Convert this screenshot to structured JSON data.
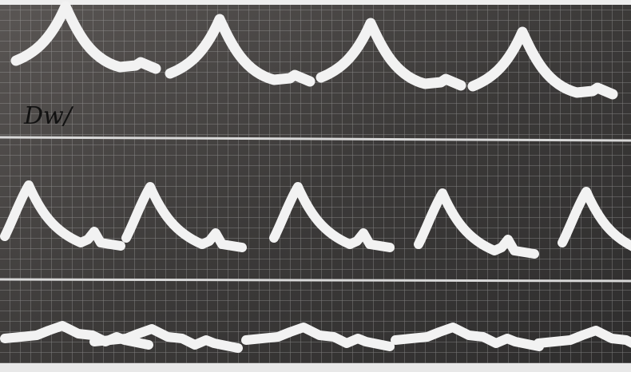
{
  "labels": [
    "Dw/"
  ]
}
